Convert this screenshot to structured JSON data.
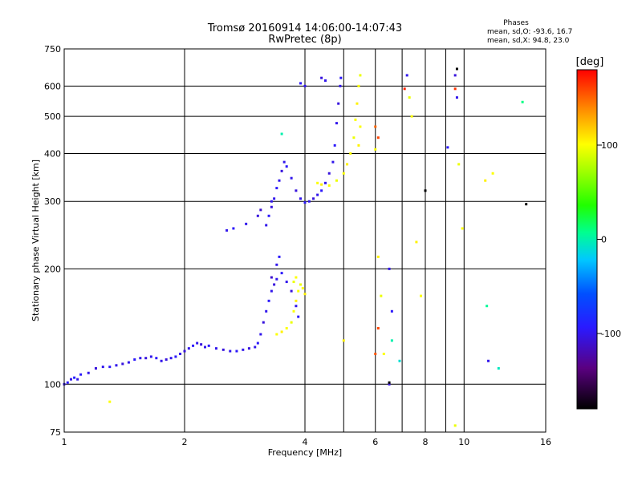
{
  "chart_data": {
    "type": "scatter",
    "title": "Tromsø 20160914 14:06:00-14:07:43",
    "subtitle": "RwPretec (8p)",
    "xlabel": "Frequency [MHz]",
    "ylabel": "Stationary phase Virtual Height [km]",
    "x_scale": "log",
    "y_scale": "log",
    "xlim": [
      1,
      16
    ],
    "ylim": [
      75,
      750
    ],
    "x_ticks": [
      1,
      2,
      4,
      6,
      8,
      10,
      16
    ],
    "x_tick_labels": [
      "1",
      "2",
      "4",
      "6",
      "8",
      "10",
      "16"
    ],
    "y_ticks": [
      75,
      100,
      200,
      300,
      400,
      500,
      600,
      750
    ],
    "y_tick_labels": [
      "75",
      "100",
      "200",
      "300",
      "400",
      "500",
      "600",
      "750"
    ],
    "grid": true,
    "x_minor_lines": [
      5,
      7,
      9
    ],
    "phases_info": {
      "heading": "Phases",
      "line_o": "mean, sd,O: -93.6, 16.7",
      "line_x": "mean, sd,X:  94.8, 23.0"
    },
    "colorbar": {
      "label": "[deg]",
      "range": [
        -180,
        180
      ],
      "ticks": [
        100,
        0,
        -100
      ],
      "tick_labels": [
        "100",
        "0",
        "-100"
      ]
    },
    "series": [
      {
        "mode": "O",
        "points": [
          [
            1.0,
            100,
            -100
          ],
          [
            1.02,
            101,
            -95
          ],
          [
            1.04,
            103,
            -100
          ],
          [
            1.06,
            104,
            -90
          ],
          [
            1.08,
            103,
            -100
          ],
          [
            1.1,
            106,
            -95
          ],
          [
            1.15,
            107,
            -100
          ],
          [
            1.2,
            110,
            -105
          ],
          [
            1.25,
            111,
            -100
          ],
          [
            1.3,
            111,
            -95
          ],
          [
            1.35,
            112,
            -100
          ],
          [
            1.4,
            113,
            -105
          ],
          [
            1.45,
            114,
            -100
          ],
          [
            1.5,
            116,
            -95
          ],
          [
            1.55,
            117,
            -100
          ],
          [
            1.6,
            117,
            -105
          ],
          [
            1.65,
            118,
            -100
          ],
          [
            1.7,
            117,
            -95
          ],
          [
            1.75,
            115,
            -100
          ],
          [
            1.8,
            116,
            -105
          ],
          [
            1.85,
            117,
            -100
          ],
          [
            1.9,
            118,
            -95
          ],
          [
            1.95,
            120,
            -100
          ],
          [
            2.0,
            122,
            -105
          ],
          [
            2.05,
            124,
            -100
          ],
          [
            2.1,
            126,
            -95
          ],
          [
            2.15,
            128,
            -100
          ],
          [
            2.2,
            127,
            -105
          ],
          [
            2.25,
            125,
            -100
          ],
          [
            2.3,
            126,
            -95
          ],
          [
            2.4,
            124,
            -100
          ],
          [
            2.5,
            123,
            -105
          ],
          [
            2.6,
            122,
            -100
          ],
          [
            2.7,
            122,
            -95
          ],
          [
            2.8,
            123,
            -100
          ],
          [
            2.9,
            124,
            -105
          ],
          [
            3.0,
            125,
            -100
          ],
          [
            3.05,
            128,
            -95
          ],
          [
            3.1,
            135,
            -100
          ],
          [
            3.15,
            145,
            -105
          ],
          [
            3.2,
            155,
            -100
          ],
          [
            3.25,
            165,
            -95
          ],
          [
            3.3,
            175,
            -100
          ],
          [
            3.35,
            182,
            -105
          ],
          [
            3.4,
            188,
            -100
          ],
          [
            3.5,
            195,
            -95
          ],
          [
            3.6,
            185,
            -100
          ],
          [
            3.7,
            175,
            -105
          ],
          [
            3.8,
            160,
            -100
          ],
          [
            3.85,
            150,
            -95
          ],
          [
            3.3,
            190,
            -110
          ],
          [
            3.4,
            205,
            -100
          ],
          [
            3.45,
            215,
            -95
          ],
          [
            3.2,
            260,
            -100
          ],
          [
            3.25,
            275,
            -95
          ],
          [
            3.3,
            290,
            -105
          ],
          [
            3.35,
            305,
            -100
          ],
          [
            3.4,
            325,
            -95
          ],
          [
            3.45,
            340,
            -100
          ],
          [
            3.5,
            360,
            -105
          ],
          [
            3.55,
            380,
            -100
          ],
          [
            3.6,
            370,
            -95
          ],
          [
            3.7,
            345,
            -100
          ],
          [
            3.8,
            320,
            -105
          ],
          [
            3.9,
            305,
            -100
          ],
          [
            4.0,
            298,
            -95
          ],
          [
            4.1,
            300,
            -100
          ],
          [
            4.2,
            305,
            -105
          ],
          [
            4.3,
            312,
            -100
          ],
          [
            4.4,
            320,
            -95
          ],
          [
            4.5,
            335,
            -100
          ],
          [
            4.6,
            355,
            -105
          ],
          [
            4.7,
            380,
            -100
          ],
          [
            4.75,
            420,
            -95
          ],
          [
            4.8,
            480,
            -100
          ],
          [
            4.85,
            540,
            -105
          ],
          [
            4.9,
            600,
            -100
          ],
          [
            4.92,
            630,
            -95
          ],
          [
            2.55,
            252,
            -100
          ],
          [
            2.65,
            255,
            -95
          ],
          [
            2.85,
            262,
            -100
          ],
          [
            3.05,
            275,
            -105
          ],
          [
            4.0,
            600,
            -100
          ],
          [
            3.9,
            610,
            -95
          ],
          [
            4.5,
            620,
            -100
          ],
          [
            4.4,
            630,
            -105
          ],
          [
            6.5,
            200,
            -100
          ],
          [
            6.6,
            155,
            -95
          ],
          [
            7.2,
            640,
            -100
          ],
          [
            9.5,
            640,
            -105
          ],
          [
            9.6,
            560,
            -100
          ],
          [
            9.1,
            415,
            -95
          ],
          [
            11.5,
            115,
            -100
          ],
          [
            6.5,
            100,
            -105
          ]
        ]
      },
      {
        "mode": "X",
        "points": [
          [
            3.4,
            135,
            100
          ],
          [
            3.5,
            137,
            105
          ],
          [
            3.6,
            140,
            100
          ],
          [
            3.7,
            145,
            95
          ],
          [
            3.75,
            155,
            100
          ],
          [
            3.8,
            165,
            105
          ],
          [
            3.85,
            175,
            100
          ],
          [
            3.9,
            182,
            95
          ],
          [
            3.95,
            178,
            100
          ],
          [
            4.0,
            172,
            105
          ],
          [
            3.8,
            190,
            100
          ],
          [
            3.75,
            185,
            95
          ],
          [
            4.3,
            335,
            100
          ],
          [
            4.4,
            332,
            105
          ],
          [
            4.6,
            330,
            100
          ],
          [
            4.8,
            340,
            95
          ],
          [
            5.0,
            355,
            100
          ],
          [
            5.1,
            375,
            105
          ],
          [
            5.2,
            400,
            100
          ],
          [
            5.3,
            440,
            95
          ],
          [
            5.35,
            490,
            100
          ],
          [
            5.4,
            540,
            105
          ],
          [
            5.45,
            600,
            100
          ],
          [
            5.5,
            640,
            95
          ],
          [
            5.5,
            470,
            100
          ],
          [
            5.45,
            420,
            105
          ],
          [
            6.0,
            410,
            100
          ],
          [
            6.1,
            215,
            105
          ],
          [
            6.2,
            170,
            95
          ],
          [
            6.3,
            120,
            100
          ],
          [
            7.3,
            560,
            95
          ],
          [
            7.4,
            500,
            100
          ],
          [
            7.6,
            235,
            105
          ],
          [
            7.8,
            170,
            100
          ],
          [
            9.7,
            375,
            95
          ],
          [
            9.9,
            255,
            100
          ],
          [
            11.3,
            340,
            105
          ],
          [
            11.8,
            355,
            100
          ],
          [
            9.5,
            78,
            95
          ],
          [
            1.3,
            90,
            100
          ],
          [
            5.0,
            130,
            105
          ]
        ]
      },
      {
        "mode": "other",
        "points": [
          [
            3.5,
            450,
            0
          ],
          [
            12.2,
            110,
            -5
          ],
          [
            14.0,
            545,
            10
          ],
          [
            11.4,
            160,
            5
          ],
          [
            6.9,
            115,
            -10
          ],
          [
            6.6,
            130,
            0
          ],
          [
            6.0,
            470,
            150
          ],
          [
            6.1,
            440,
            160
          ],
          [
            7.1,
            590,
            170
          ],
          [
            9.5,
            590,
            165
          ],
          [
            6.1,
            140,
            160
          ],
          [
            6.0,
            120,
            155
          ],
          [
            8.0,
            320,
            -180
          ],
          [
            9.6,
            665,
            -180
          ],
          [
            14.3,
            295,
            -180
          ],
          [
            6.5,
            101,
            -180
          ],
          [
            3.3,
            300,
            -100
          ],
          [
            3.1,
            285,
            -110
          ]
        ]
      }
    ]
  }
}
